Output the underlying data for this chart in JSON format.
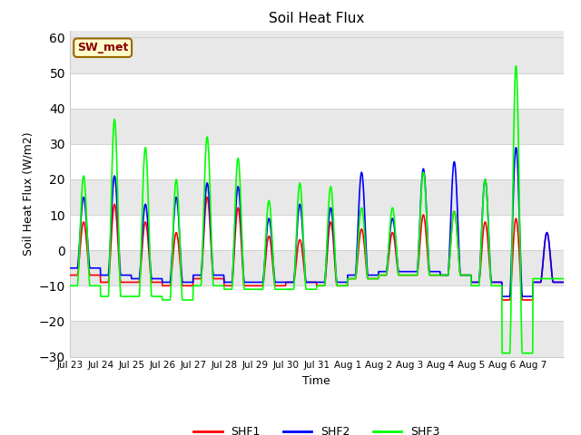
{
  "title": "Soil Heat Flux",
  "xlabel": "Time",
  "ylabel": "Soil Heat Flux (W/m2)",
  "ylim": [
    -30,
    62
  ],
  "yticks": [
    -30,
    -20,
    -10,
    0,
    10,
    20,
    30,
    40,
    50,
    60
  ],
  "line_colors": [
    "red",
    "blue",
    "lime"
  ],
  "legend_labels": [
    "SHF1",
    "SHF2",
    "SHF3"
  ],
  "annotation_text": "SW_met",
  "annotation_box_facecolor": "#ffffcc",
  "annotation_box_edgecolor": "#996600",
  "annotation_text_color": "#880000",
  "fig_facecolor": "#ffffff",
  "ax_facecolor": "#ffffff",
  "band_colors": [
    "#e8e8e8",
    "#ffffff"
  ],
  "tick_labels": [
    "Jul 23",
    "Jul 24",
    "Jul 25",
    "Jul 26",
    "Jul 27",
    "Jul 28",
    "Jul 29",
    "Jul 30",
    "Jul 31",
    "Aug 1",
    "Aug 2",
    "Aug 3",
    "Aug 4",
    "Aug 5",
    "Aug 6",
    "Aug 7"
  ],
  "n_per_day": 96,
  "n_days": 16,
  "shf1_peaks": [
    8,
    13,
    8,
    5,
    15,
    12,
    4,
    3,
    8,
    6,
    5,
    10,
    11,
    8,
    9,
    5
  ],
  "shf1_nights": [
    -7,
    -9,
    -9,
    -10,
    -8,
    -10,
    -10,
    -9,
    -10,
    -8,
    -7,
    -7,
    -7,
    -9,
    -14,
    -9
  ],
  "shf2_peaks": [
    15,
    21,
    13,
    15,
    19,
    18,
    9,
    13,
    12,
    22,
    9,
    23,
    25,
    20,
    29,
    5
  ],
  "shf2_nights": [
    -5,
    -7,
    -8,
    -9,
    -7,
    -9,
    -9,
    -9,
    -9,
    -7,
    -6,
    -6,
    -7,
    -9,
    -13,
    -9
  ],
  "shf3_peaks": [
    21,
    37,
    29,
    20,
    32,
    26,
    14,
    19,
    18,
    12,
    12,
    22,
    11,
    20,
    52,
    -8
  ],
  "shf3_nights": [
    -10,
    -13,
    -13,
    -14,
    -10,
    -11,
    -11,
    -11,
    -10,
    -8,
    -7,
    -7,
    -7,
    -10,
    -29,
    -8
  ]
}
